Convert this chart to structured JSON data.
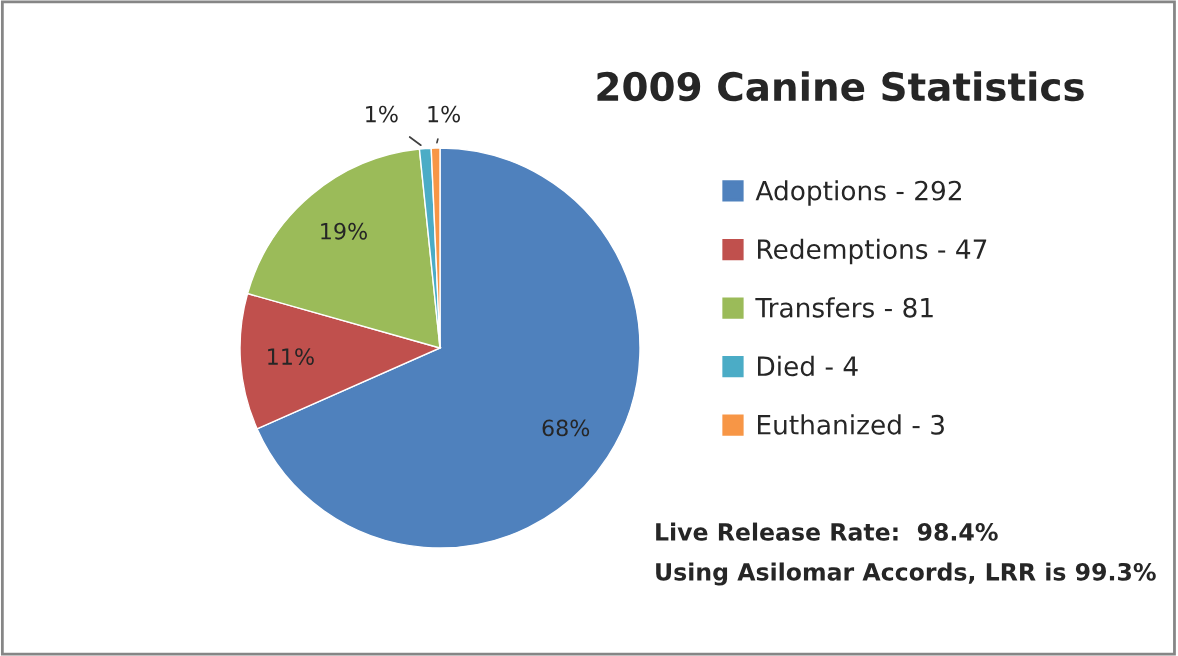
{
  "chart_data": {
    "type": "pie",
    "title": "2009 Canine Statistics",
    "categories": [
      "Adoptions - 292",
      "Redemptions - 47",
      "Transfers - 81",
      "Died - 4",
      "Euthanized - 3"
    ],
    "values": [
      68.38,
      11.01,
      18.97,
      0.94,
      0.7
    ],
    "value_labels": [
      "68%",
      "11%",
      "19%",
      "1%",
      "1%"
    ],
    "colors": [
      "#4f81bd",
      "#c0504d",
      "#9bbb59",
      "#4bacc6",
      "#f79646"
    ],
    "legend": "right",
    "annotations": [
      "Live Release Rate:  98.4%",
      "Using Asilomar Accords, LRR is 99.3%"
    ]
  }
}
